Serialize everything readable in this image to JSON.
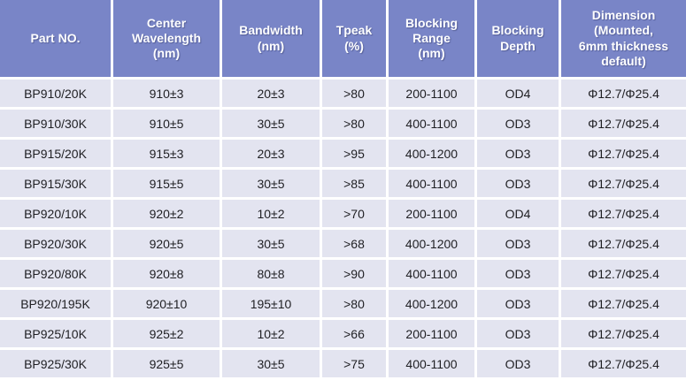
{
  "table": {
    "title": "Bandpass filter specification table",
    "columns": [
      {
        "key": "part_no",
        "label": "Part NO."
      },
      {
        "key": "center_wavelength",
        "label": "Center\nWavelength\n(nm)"
      },
      {
        "key": "bandwidth",
        "label": "Bandwidth\n(nm)"
      },
      {
        "key": "tpeak",
        "label": "Tpeak\n(%)"
      },
      {
        "key": "blocking_range",
        "label": "Blocking\nRange\n(nm)"
      },
      {
        "key": "blocking_depth",
        "label": "Blocking\nDepth"
      },
      {
        "key": "dimension",
        "label": "Dimension\n(Mounted,\n6mm thickness\ndefault)"
      }
    ],
    "rows": [
      {
        "part_no": "BP910/20K",
        "center_wavelength": "910±3",
        "bandwidth": "20±3",
        "tpeak": ">80",
        "blocking_range": "200-1100",
        "blocking_depth": "OD4",
        "dimension": "Φ12.7/Φ25.4"
      },
      {
        "part_no": "BP910/30K",
        "center_wavelength": "910±5",
        "bandwidth": "30±5",
        "tpeak": ">80",
        "blocking_range": "400-1100",
        "blocking_depth": "OD3",
        "dimension": "Φ12.7/Φ25.4"
      },
      {
        "part_no": "BP915/20K",
        "center_wavelength": "915±3",
        "bandwidth": "20±3",
        "tpeak": ">95",
        "blocking_range": "400-1200",
        "blocking_depth": "OD3",
        "dimension": "Φ12.7/Φ25.4"
      },
      {
        "part_no": "BP915/30K",
        "center_wavelength": "915±5",
        "bandwidth": "30±5",
        "tpeak": ">85",
        "blocking_range": "400-1100",
        "blocking_depth": "OD3",
        "dimension": "Φ12.7/Φ25.4"
      },
      {
        "part_no": "BP920/10K",
        "center_wavelength": "920±2",
        "bandwidth": "10±2",
        "tpeak": ">70",
        "blocking_range": "200-1100",
        "blocking_depth": "OD4",
        "dimension": "Φ12.7/Φ25.4"
      },
      {
        "part_no": "BP920/30K",
        "center_wavelength": "920±5",
        "bandwidth": "30±5",
        "tpeak": ">68",
        "blocking_range": "400-1200",
        "blocking_depth": "OD3",
        "dimension": "Φ12.7/Φ25.4"
      },
      {
        "part_no": "BP920/80K",
        "center_wavelength": "920±8",
        "bandwidth": "80±8",
        "tpeak": ">90",
        "blocking_range": "400-1100",
        "blocking_depth": "OD3",
        "dimension": "Φ12.7/Φ25.4"
      },
      {
        "part_no": "BP920/195K",
        "center_wavelength": "920±10",
        "bandwidth": "195±10",
        "tpeak": ">80",
        "blocking_range": "400-1200",
        "blocking_depth": "OD3",
        "dimension": "Φ12.7/Φ25.4"
      },
      {
        "part_no": "BP925/10K",
        "center_wavelength": "925±2",
        "bandwidth": "10±2",
        "tpeak": ">66",
        "blocking_range": "200-1100",
        "blocking_depth": "OD3",
        "dimension": "Φ12.7/Φ25.4"
      },
      {
        "part_no": "BP925/30K",
        "center_wavelength": "925±5",
        "bandwidth": "30±5",
        "tpeak": ">75",
        "blocking_range": "400-1100",
        "blocking_depth": "OD3",
        "dimension": "Φ12.7/Φ25.4"
      }
    ]
  },
  "colors": {
    "header_bg": "#7985c7",
    "row_bg": "#e3e4f0",
    "divider": "#ffffff",
    "header_text": "#ffffff",
    "body_text": "#1f1f23"
  }
}
